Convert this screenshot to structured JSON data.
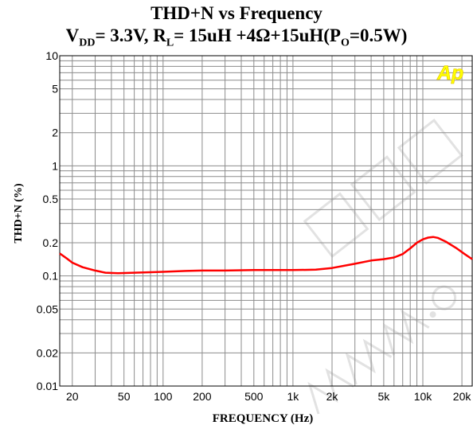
{
  "chart_data": {
    "type": "line",
    "title_line1": "THD+N vs Frequency",
    "subtitle": {
      "vdd_sym": "V",
      "vdd_sub": "DD",
      "vdd_val": "= 3.3V, R",
      "rl_sub": "L",
      "rl_val": "= 15uH +4Ω+15uH(P",
      "po_sub": "O",
      "po_val": "=0.5W)"
    },
    "xlabel": "FREQUENCY (Hz)",
    "ylabel": "THD+N (%)",
    "xscale": "log",
    "yscale": "log",
    "xlim": [
      16,
      24000
    ],
    "ylim": [
      0.01,
      10
    ],
    "grid": true,
    "x_ticks": [
      {
        "v": 20,
        "label": "20"
      },
      {
        "v": 50,
        "label": "50"
      },
      {
        "v": 100,
        "label": "100"
      },
      {
        "v": 200,
        "label": "200"
      },
      {
        "v": 500,
        "label": "500"
      },
      {
        "v": 1000,
        "label": "1k"
      },
      {
        "v": 2000,
        "label": "2k"
      },
      {
        "v": 5000,
        "label": "5k"
      },
      {
        "v": 10000,
        "label": "10k"
      },
      {
        "v": 20000,
        "label": "20k"
      }
    ],
    "y_ticks": [
      {
        "v": 10,
        "label": "10"
      },
      {
        "v": 5,
        "label": "5"
      },
      {
        "v": 2,
        "label": "2"
      },
      {
        "v": 1,
        "label": "1"
      },
      {
        "v": 0.5,
        "label": "0.5"
      },
      {
        "v": 0.2,
        "label": "0.2"
      },
      {
        "v": 0.1,
        "label": "0.1"
      },
      {
        "v": 0.05,
        "label": "0.05"
      },
      {
        "v": 0.02,
        "label": "0.02"
      },
      {
        "v": 0.01,
        "label": "0.01"
      }
    ],
    "series": [
      {
        "color": "#ff0000",
        "x": [
          16,
          18,
          20,
          24,
          30,
          36,
          45,
          60,
          80,
          100,
          150,
          200,
          300,
          500,
          1000,
          1500,
          2000,
          3000,
          4000,
          5000,
          6000,
          7000,
          8000,
          9000,
          10000,
          11000,
          12000,
          13000,
          15000,
          18000,
          21000,
          24000
        ],
        "y": [
          0.16,
          0.145,
          0.132,
          0.12,
          0.112,
          0.107,
          0.106,
          0.107,
          0.108,
          0.109,
          0.111,
          0.112,
          0.112,
          0.113,
          0.113,
          0.114,
          0.118,
          0.129,
          0.138,
          0.142,
          0.147,
          0.158,
          0.178,
          0.2,
          0.215,
          0.223,
          0.226,
          0.222,
          0.205,
          0.18,
          0.158,
          0.142
        ]
      }
    ],
    "badge": "Ap",
    "badge_color": "#ffff00",
    "line_color": "#ff0000"
  }
}
